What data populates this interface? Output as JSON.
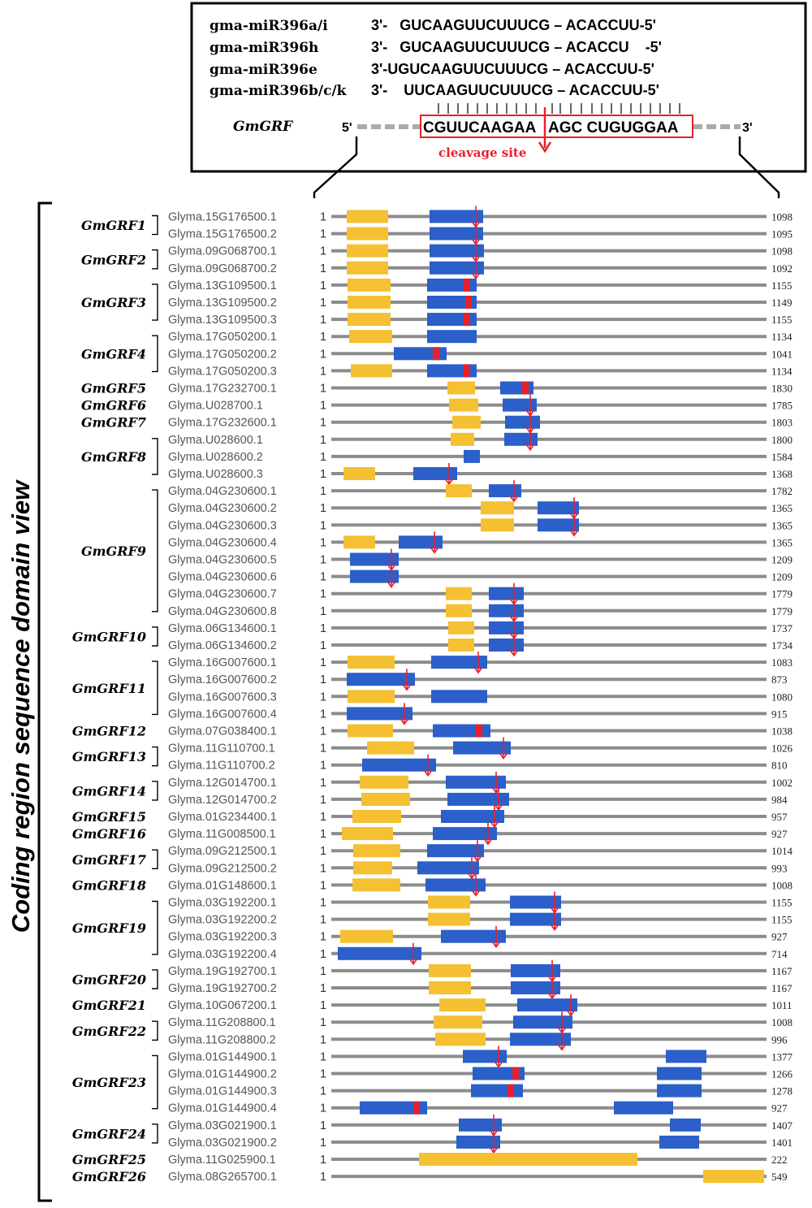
{
  "mirna_box": {
    "mirnas": [
      {
        "name": "gma-miR396a/i",
        "seq": "3'-   GUCAAGUUCUUUCG – ACACCUU-5'"
      },
      {
        "name": "gma-miR396h",
        "seq": "3'-   GUCAAGUUCUUUCG – ACACCU    -5'"
      },
      {
        "name": "gma-miR396e",
        "seq": "3'-UGUCAAGUUCUUUCG – ACACCUU-5'"
      },
      {
        "name": "gma-miR396b/c/k",
        "seq": "3'-    UUCAAGUUCUUUCG – ACACCUU-5'"
      }
    ],
    "target_gene": "GmGRF",
    "five_prime": "5'",
    "three_prime": "3'",
    "target_seq_left": "CGUUCAAGAA",
    "target_seq_right": "AGC CUGUGGAA",
    "cleavage_label": "cleavage site"
  },
  "y_axis_label": "Coding region sequence domain view",
  "start_label": "1",
  "colors": {
    "domain_qlq": "#f5c031",
    "domain_wrc": "#2b5fc9",
    "cleavage": "#e8202a",
    "backbone": "#8c8c8c",
    "bracket": "#000000"
  },
  "groups": [
    {
      "name": "GmGRF1",
      "rows": [
        0,
        1
      ]
    },
    {
      "name": "GmGRF2",
      "rows": [
        2,
        3
      ]
    },
    {
      "name": "GmGRF3",
      "rows": [
        4,
        6
      ]
    },
    {
      "name": "GmGRF4",
      "rows": [
        7,
        9
      ]
    },
    {
      "name": "GmGRF5",
      "rows": [
        10,
        10
      ]
    },
    {
      "name": "GmGRF6",
      "rows": [
        11,
        11
      ]
    },
    {
      "name": "GmGRF7",
      "rows": [
        12,
        12
      ]
    },
    {
      "name": "GmGRF8",
      "rows": [
        13,
        15
      ]
    },
    {
      "name": "GmGRF9",
      "rows": [
        16,
        23
      ]
    },
    {
      "name": "GmGRF10",
      "rows": [
        24,
        25
      ]
    },
    {
      "name": "GmGRF11",
      "rows": [
        26,
        29
      ]
    },
    {
      "name": "GmGRF12",
      "rows": [
        30,
        30
      ]
    },
    {
      "name": "GmGRF13",
      "rows": [
        31,
        32
      ]
    },
    {
      "name": "GmGRF14",
      "rows": [
        33,
        34
      ]
    },
    {
      "name": "GmGRF15",
      "rows": [
        35,
        35
      ]
    },
    {
      "name": "GmGRF16",
      "rows": [
        36,
        36
      ]
    },
    {
      "name": "GmGRF17",
      "rows": [
        37,
        38
      ]
    },
    {
      "name": "GmGRF18",
      "rows": [
        39,
        39
      ]
    },
    {
      "name": "GmGRF19",
      "rows": [
        40,
        43
      ]
    },
    {
      "name": "GmGRF20",
      "rows": [
        44,
        45
      ]
    },
    {
      "name": "GmGRF21",
      "rows": [
        46,
        46
      ]
    },
    {
      "name": "GmGRF22",
      "rows": [
        47,
        48
      ]
    },
    {
      "name": "GmGRF23",
      "rows": [
        49,
        52
      ]
    },
    {
      "name": "GmGRF24",
      "rows": [
        53,
        54
      ]
    },
    {
      "name": "GmGRF25",
      "rows": [
        55,
        55
      ]
    },
    {
      "name": "GmGRF26",
      "rows": [
        56,
        56
      ]
    }
  ],
  "transcripts": [
    {
      "id": "Glyma.15G176500.1",
      "length": "1098",
      "qlq": [
        427,
        478
      ],
      "wrc": [
        529,
        595
      ],
      "cut": null,
      "arrow": 586
    },
    {
      "id": "Glyma.15G176500.2",
      "length": "1095",
      "qlq": [
        427,
        478
      ],
      "wrc": [
        529,
        595
      ],
      "cut": null,
      "arrow": 586
    },
    {
      "id": "Glyma.09G068700.1",
      "length": "1098",
      "qlq": [
        427,
        478
      ],
      "wrc": [
        529,
        596
      ],
      "cut": null,
      "arrow": 586
    },
    {
      "id": "Glyma.09G068700.2",
      "length": "1092",
      "qlq": [
        427,
        478
      ],
      "wrc": [
        529,
        596
      ],
      "cut": null,
      "arrow": 586
    },
    {
      "id": "Glyma.13G109500.1",
      "length": "1155",
      "qlq": [
        428,
        481
      ],
      "wrc": [
        526,
        587
      ],
      "cut": 575,
      "arrow": null
    },
    {
      "id": "Glyma.13G109500.2",
      "length": "1149",
      "qlq": [
        428,
        481
      ],
      "wrc": [
        526,
        587
      ],
      "cut": 577,
      "arrow": null
    },
    {
      "id": "Glyma.13G109500.3",
      "length": "1155",
      "qlq": [
        428,
        481
      ],
      "wrc": [
        526,
        587
      ],
      "cut": 575,
      "arrow": null
    },
    {
      "id": "Glyma.17G050200.1",
      "length": "1134",
      "qlq": [
        430,
        483
      ],
      "wrc": [
        526,
        587
      ],
      "cut": null,
      "arrow": null
    },
    {
      "id": "Glyma.17G050200.2",
      "length": "1041",
      "qlq": null,
      "wrc": [
        485,
        550
      ],
      "cut": 537,
      "arrow": null
    },
    {
      "id": "Glyma.17G050200.3",
      "length": "1134",
      "qlq": [
        432,
        483
      ],
      "wrc": [
        526,
        587
      ],
      "cut": 575,
      "arrow": null
    },
    {
      "id": "Glyma.17G232700.1",
      "length": "1830",
      "qlq": [
        551,
        585
      ],
      "wrc": [
        616,
        657
      ],
      "cut": 647,
      "arrow": null
    },
    {
      "id": "Glyma.U028700.1",
      "length": "1785",
      "qlq": [
        553,
        589
      ],
      "wrc": [
        619,
        661
      ],
      "cut": null,
      "arrow": 653
    },
    {
      "id": "Glyma.17G232600.1",
      "length": "1803",
      "qlq": [
        557,
        592
      ],
      "wrc": [
        622,
        665
      ],
      "cut": null,
      "arrow": 653
    },
    {
      "id": "Glyma.U028600.1",
      "length": "1800",
      "qlq": [
        555,
        584
      ],
      "wrc": [
        621,
        662
      ],
      "cut": null,
      "arrow": 653
    },
    {
      "id": "Glyma.U028600.2",
      "length": "1584",
      "qlq": null,
      "wrc": [
        571,
        591
      ],
      "cut": null,
      "arrow": null
    },
    {
      "id": "Glyma.U028600.3",
      "length": "1368",
      "qlq": [
        423,
        462
      ],
      "wrc": [
        509,
        563
      ],
      "cut": null,
      "arrow": 553
    },
    {
      "id": "Glyma.04G230600.1",
      "length": "1782",
      "qlq": [
        549,
        581
      ],
      "wrc": [
        602,
        642
      ],
      "cut": null,
      "arrow": 633
    },
    {
      "id": "Glyma.04G230600.2",
      "length": "1365",
      "qlq": [
        592,
        633
      ],
      "wrc": [
        662,
        713
      ],
      "cut": null,
      "arrow": 707
    },
    {
      "id": "Glyma.04G230600.3",
      "length": "1365",
      "qlq": [
        592,
        633
      ],
      "wrc": [
        662,
        713
      ],
      "cut": null,
      "arrow": 707
    },
    {
      "id": "Glyma.04G230600.4",
      "length": "1365",
      "qlq": [
        423,
        462
      ],
      "wrc": [
        491,
        545
      ],
      "cut": null,
      "arrow": 535
    },
    {
      "id": "Glyma.04G230600.5",
      "length": "1209",
      "qlq": null,
      "wrc": [
        431,
        491
      ],
      "cut": null,
      "arrow": 482
    },
    {
      "id": "Glyma.04G230600.6",
      "length": "1209",
      "qlq": null,
      "wrc": [
        431,
        491
      ],
      "cut": null,
      "arrow": 482
    },
    {
      "id": "Glyma.04G230600.7",
      "length": "1779",
      "qlq": [
        549,
        581
      ],
      "wrc": [
        602,
        645
      ],
      "cut": null,
      "arrow": 633
    },
    {
      "id": "Glyma.04G230600.8",
      "length": "1779",
      "qlq": [
        549,
        581
      ],
      "wrc": [
        602,
        645
      ],
      "cut": null,
      "arrow": 633
    },
    {
      "id": "Glyma.06G134600.1",
      "length": "1737",
      "qlq": [
        552,
        584
      ],
      "wrc": [
        602,
        645
      ],
      "cut": null,
      "arrow": 633
    },
    {
      "id": "Glyma.06G134600.2",
      "length": "1734",
      "qlq": [
        552,
        584
      ],
      "wrc": [
        602,
        645
      ],
      "cut": null,
      "arrow": 633
    },
    {
      "id": "Glyma.16G007600.1",
      "length": "1083",
      "qlq": [
        428,
        486
      ],
      "wrc": [
        531,
        600
      ],
      "cut": null,
      "arrow": 589
    },
    {
      "id": "Glyma.16G007600.2",
      "length": "873",
      "qlq": null,
      "wrc": [
        427,
        511
      ],
      "cut": null,
      "arrow": 501
    },
    {
      "id": "Glyma.16G007600.3",
      "length": "1080",
      "qlq": [
        428,
        486
      ],
      "wrc": [
        531,
        600
      ],
      "cut": null,
      "arrow": null
    },
    {
      "id": "Glyma.16G007600.4",
      "length": "915",
      "qlq": null,
      "wrc": [
        427,
        508
      ],
      "cut": null,
      "arrow": 498
    },
    {
      "id": "Glyma.07G038400.1",
      "length": "1038",
      "qlq": [
        428,
        484
      ],
      "wrc": [
        533,
        604
      ],
      "cut": 590,
      "arrow": null
    },
    {
      "id": "Glyma.11G110700.1",
      "length": "1026",
      "qlq": [
        452,
        510
      ],
      "wrc": [
        558,
        629
      ],
      "cut": null,
      "arrow": 620
    },
    {
      "id": "Glyma.11G110700.2",
      "length": "810",
      "qlq": null,
      "wrc": [
        446,
        537
      ],
      "cut": null,
      "arrow": 527
    },
    {
      "id": "Glyma.12G014700.1",
      "length": "1002",
      "qlq": [
        443,
        503
      ],
      "wrc": [
        549,
        623
      ],
      "cut": null,
      "arrow": 611
    },
    {
      "id": "Glyma.12G014700.2",
      "length": "984",
      "qlq": [
        445,
        505
      ],
      "wrc": [
        551,
        627
      ],
      "cut": null,
      "arrow": 614
    },
    {
      "id": "Glyma.01G234400.1",
      "length": "957",
      "qlq": [
        434,
        494
      ],
      "wrc": [
        543,
        621
      ],
      "cut": null,
      "arrow": 609
    },
    {
      "id": "Glyma.11G008500.1",
      "length": "927",
      "qlq": [
        421,
        484
      ],
      "wrc": [
        533,
        612
      ],
      "cut": null,
      "arrow": 601
    },
    {
      "id": "Glyma.09G212500.1",
      "length": "1014",
      "qlq": [
        435,
        493
      ],
      "wrc": [
        526,
        596
      ],
      "cut": null,
      "arrow": 588
    },
    {
      "id": "Glyma.09G212500.2",
      "length": "993",
      "qlq": [
        435,
        483
      ],
      "wrc": [
        514,
        590
      ],
      "cut": null,
      "arrow": 581
    },
    {
      "id": "Glyma.01G148600.1",
      "length": "1008",
      "qlq": [
        434,
        493
      ],
      "wrc": [
        524,
        598
      ],
      "cut": null,
      "arrow": 586
    },
    {
      "id": "Glyma.03G192200.1",
      "length": "1155",
      "qlq": [
        527,
        579
      ],
      "wrc": [
        628,
        691
      ],
      "cut": null,
      "arrow": 683
    },
    {
      "id": "Glyma.03G192200.2",
      "length": "1155",
      "qlq": [
        527,
        579
      ],
      "wrc": [
        628,
        691
      ],
      "cut": null,
      "arrow": 683
    },
    {
      "id": "Glyma.03G192200.3",
      "length": "927",
      "qlq": [
        419,
        484
      ],
      "wrc": [
        543,
        623
      ],
      "cut": null,
      "arrow": 611
    },
    {
      "id": "Glyma.03G192200.4",
      "length": "714",
      "qlq": null,
      "wrc": [
        416,
        519
      ],
      "cut": null,
      "arrow": 509
    },
    {
      "id": "Glyma.19G192700.1",
      "length": "1167",
      "qlq": [
        528,
        580
      ],
      "wrc": [
        629,
        690
      ],
      "cut": null,
      "arrow": 680
    },
    {
      "id": "Glyma.19G192700.2",
      "length": "1167",
      "qlq": [
        528,
        580
      ],
      "wrc": [
        629,
        690
      ],
      "cut": null,
      "arrow": 680
    },
    {
      "id": "Glyma.10G067200.1",
      "length": "1011",
      "qlq": [
        541,
        598
      ],
      "wrc": [
        637,
        711
      ],
      "cut": null,
      "arrow": 703
    },
    {
      "id": "Glyma.11G208800.1",
      "length": "1008",
      "qlq": [
        534,
        594
      ],
      "wrc": [
        632,
        705
      ],
      "cut": null,
      "arrow": 692
    },
    {
      "id": "Glyma.11G208800.2",
      "length": "996",
      "qlq": [
        536,
        598
      ],
      "wrc": [
        628,
        703
      ],
      "cut": null,
      "arrow": 692
    },
    {
      "id": "Glyma.01G144900.1",
      "length": "1377",
      "qlq": null,
      "wrc": [
        570,
        624
      ],
      "cut": null,
      "arrow": 614,
      "wrc2": [
        820,
        870
      ]
    },
    {
      "id": "Glyma.01G144900.2",
      "length": "1266",
      "qlq": null,
      "wrc": [
        582,
        646
      ],
      "cut": 635,
      "arrow": null,
      "wrc2": [
        809,
        864
      ]
    },
    {
      "id": "Glyma.01G144900.3",
      "length": "1278",
      "qlq": null,
      "wrc": [
        580,
        644
      ],
      "cut": 629,
      "arrow": null,
      "wrc2": [
        809,
        864
      ]
    },
    {
      "id": "Glyma.01G144900.4",
      "length": "927",
      "qlq": null,
      "wrc": [
        443,
        526
      ],
      "cut": 513,
      "arrow": null,
      "wrc2": [
        756,
        829
      ]
    },
    {
      "id": "Glyma.03G021900.1",
      "length": "1407",
      "qlq": null,
      "wrc": [
        565,
        618
      ],
      "cut": null,
      "arrow": 608,
      "wrc2": [
        825,
        863
      ]
    },
    {
      "id": "Glyma.03G021900.2",
      "length": "1401",
      "qlq": null,
      "wrc": [
        562,
        616
      ],
      "cut": null,
      "arrow": 608,
      "wrc2": [
        812,
        861
      ]
    },
    {
      "id": "Glyma.11G025900.1",
      "length": "222",
      "qlq": [
        516,
        785
      ],
      "wrc": null,
      "cut": null,
      "arrow": null
    },
    {
      "id": "Glyma.08G265700.1",
      "length": "549",
      "qlq": [
        866,
        941
      ],
      "wrc": null,
      "cut": null,
      "arrow": null
    }
  ]
}
